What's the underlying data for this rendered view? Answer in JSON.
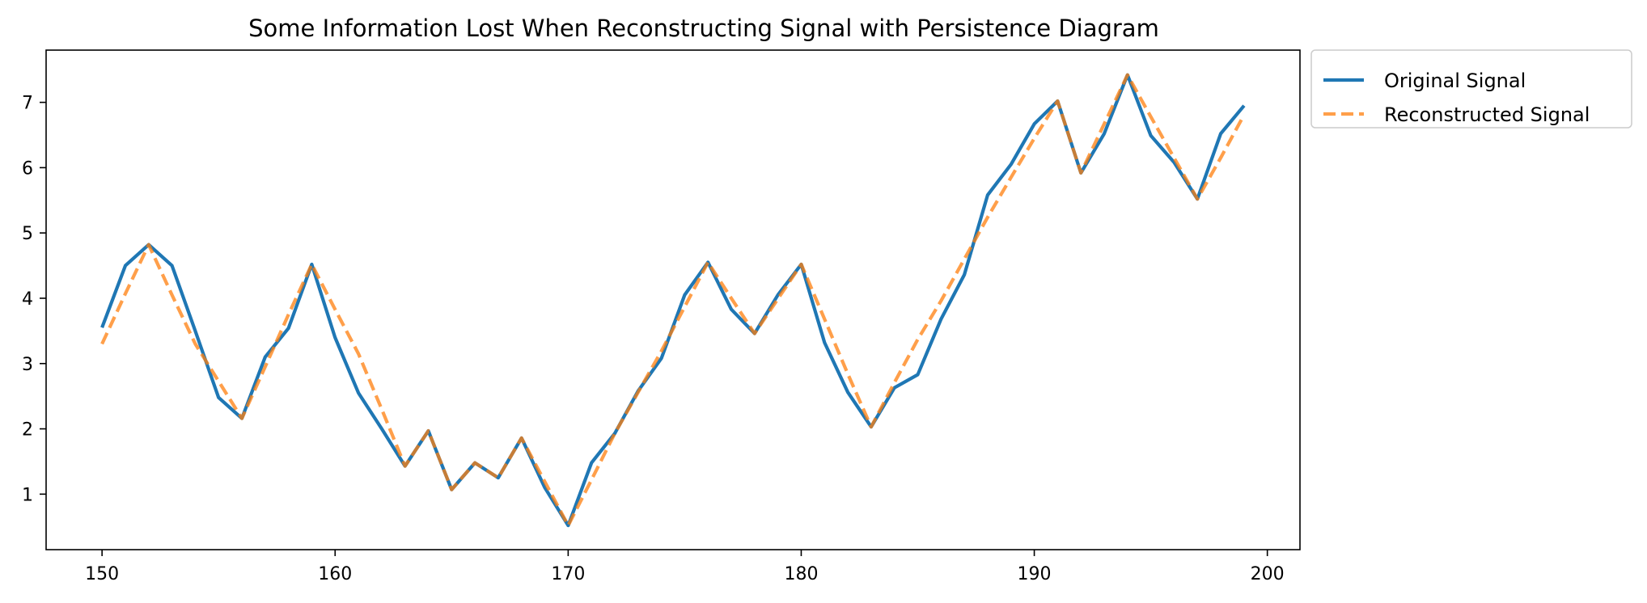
{
  "chart_data": {
    "type": "line",
    "title": "Some Information Lost When Reconstructing Signal with Persistence Diagram",
    "xlabel": "",
    "ylabel": "",
    "xlim": [
      147.6,
      201.4
    ],
    "ylim": [
      0.15,
      7.8
    ],
    "xticks": [
      150,
      160,
      170,
      180,
      190,
      200
    ],
    "yticks": [
      1,
      2,
      3,
      4,
      5,
      6,
      7
    ],
    "grid": false,
    "legend_position": "outside-top-right",
    "x": [
      150,
      151,
      152,
      153,
      154,
      155,
      156,
      157,
      158,
      159,
      160,
      161,
      162,
      163,
      164,
      165,
      166,
      167,
      168,
      169,
      170,
      171,
      172,
      173,
      174,
      175,
      176,
      177,
      178,
      179,
      180,
      181,
      182,
      183,
      184,
      185,
      186,
      187,
      188,
      189,
      190,
      191,
      192,
      193,
      194,
      195,
      196,
      197,
      198,
      199
    ],
    "series": [
      {
        "name": "Original Signal",
        "color": "#1f77b4",
        "style": "solid",
        "values": [
          3.55,
          4.5,
          4.82,
          4.5,
          3.5,
          2.48,
          2.16,
          3.1,
          3.54,
          4.52,
          3.4,
          2.55,
          2.0,
          1.43,
          1.97,
          1.07,
          1.48,
          1.25,
          1.86,
          1.1,
          0.52,
          1.48,
          1.93,
          2.58,
          3.08,
          4.05,
          4.55,
          3.83,
          3.46,
          4.05,
          4.52,
          3.32,
          2.56,
          2.03,
          2.63,
          2.83,
          3.68,
          4.36,
          5.58,
          6.05,
          6.67,
          7.02,
          5.92,
          6.52,
          7.42,
          6.49,
          6.08,
          5.52,
          6.52,
          6.95
        ]
      },
      {
        "name": "Reconstructed Signal",
        "color": "#ff7f0e",
        "style": "dashed",
        "values": [
          3.3,
          4.07,
          4.82,
          4.05,
          3.3,
          2.73,
          2.16,
          2.95,
          3.75,
          4.52,
          3.83,
          3.15,
          2.3,
          1.43,
          1.97,
          1.07,
          1.48,
          1.25,
          1.86,
          1.19,
          0.52,
          1.22,
          1.93,
          2.56,
          3.19,
          3.87,
          4.55,
          4.0,
          3.46,
          3.99,
          4.52,
          3.68,
          2.84,
          2.03,
          2.71,
          3.37,
          3.96,
          4.6,
          5.24,
          5.85,
          6.45,
          7.02,
          5.92,
          6.67,
          7.42,
          6.78,
          6.15,
          5.52,
          6.15,
          6.81
        ]
      }
    ]
  }
}
